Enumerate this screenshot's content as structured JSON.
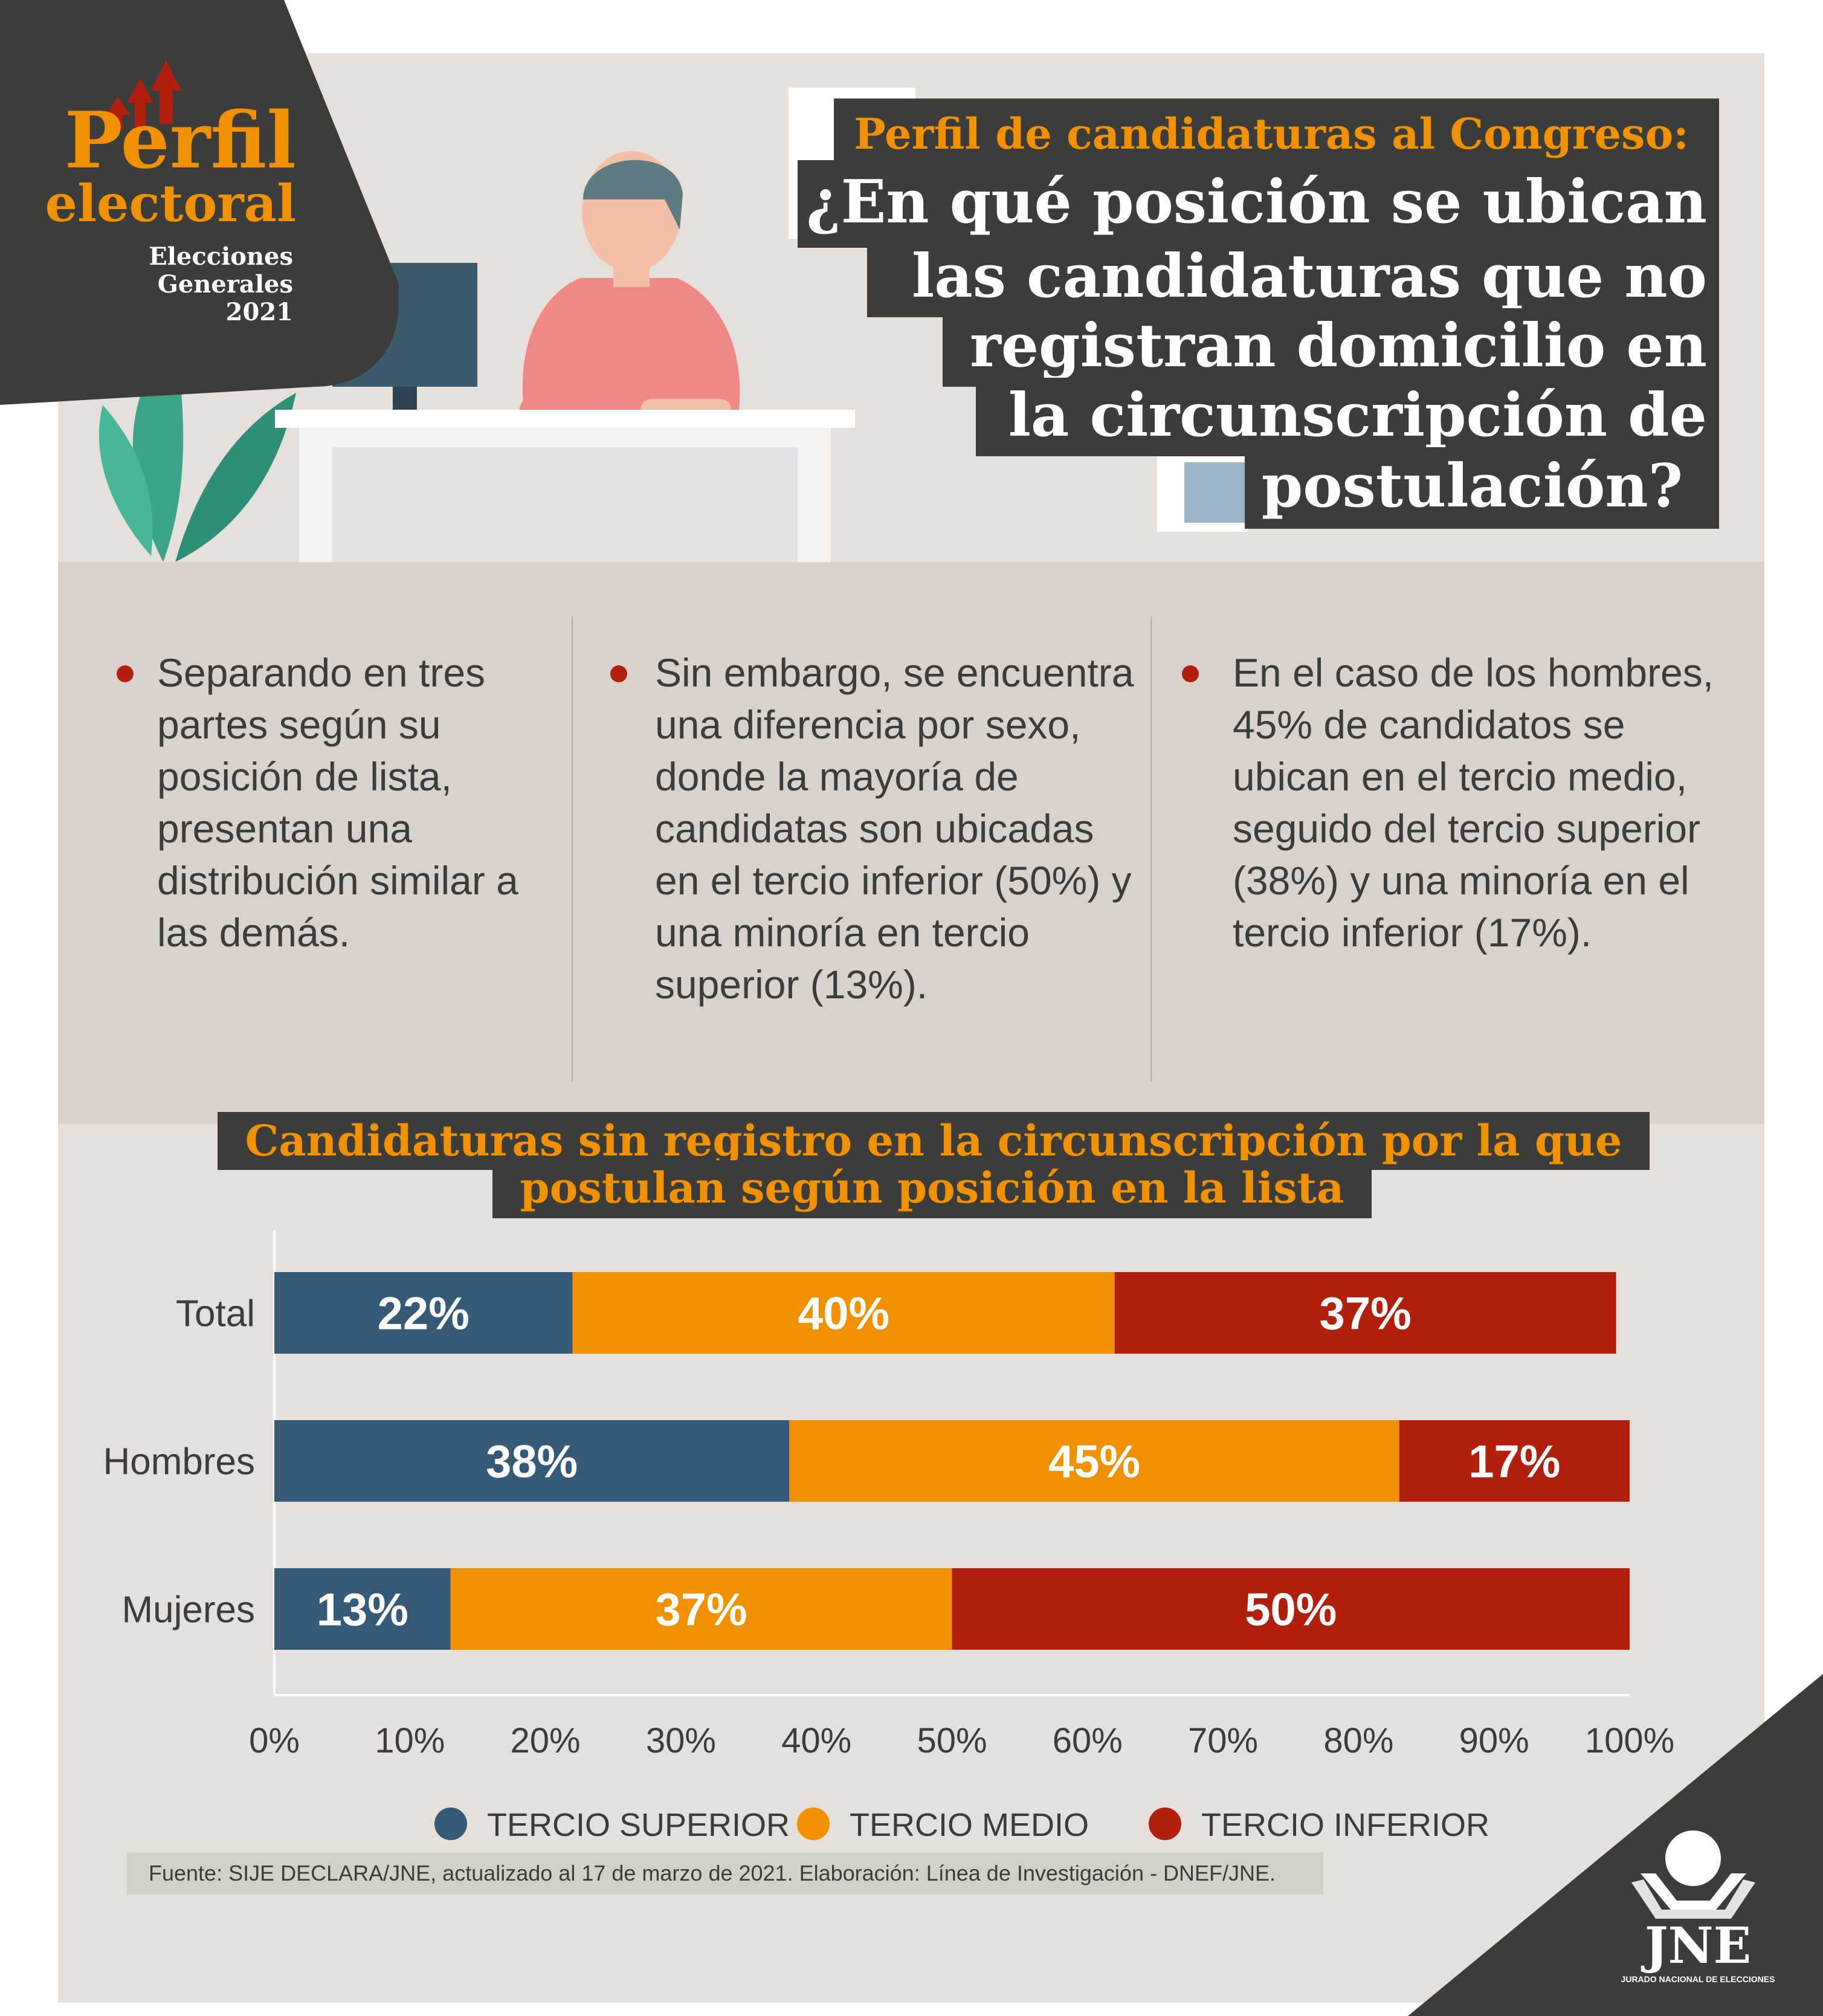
{
  "badge": {
    "title_line1": "Perfil",
    "title_line2": "electoral",
    "sub_line1": "Elecciones",
    "sub_line2": "Generales",
    "sub_line3": "2021"
  },
  "header": {
    "kicker": "Perfil de candidaturas al Congreso:",
    "question_lines": [
      "¿En qué posición se ubican",
      "las candidaturas que no",
      "registran domicilio en",
      "la circunscripción de",
      "postulación?"
    ]
  },
  "columns": [
    "Separando en tres partes según su posición de lista, presentan una distribución similar a las demás.",
    "Sin embargo, se encuentra una diferencia por sexo, donde la mayoría de candidatas son ubicadas en el tercio inferior (50%) y una minoría en tercio superior (13%).",
    "En el caso de los hombres, 45% de candidatos se ubican en el tercio medio, seguido del tercio superior (38%) y una minoría en el tercio inferior (17%)."
  ],
  "chart_title": {
    "line1": "Candidaturas sin registro en la circunscripción por la que",
    "line2": "postulan según posición en la lista"
  },
  "chart_data": {
    "type": "bar",
    "orientation": "horizontal",
    "stacked": true,
    "categories": [
      "Total",
      "Hombres",
      "Mujeres"
    ],
    "series": [
      {
        "name": "TERCIO SUPERIOR",
        "color": "#355a78",
        "values": [
          22,
          38,
          13
        ],
        "labels": [
          "22%",
          "38%",
          "13%"
        ]
      },
      {
        "name": "TERCIO MEDIO",
        "color": "#f29100",
        "values": [
          40,
          45,
          37
        ],
        "labels": [
          "40%",
          "45%",
          "37%"
        ]
      },
      {
        "name": "TERCIO INFERIOR",
        "color": "#b21f0c",
        "values": [
          37,
          17,
          50
        ],
        "labels": [
          "37%",
          "17%",
          "50%"
        ]
      }
    ],
    "xlim": [
      0,
      100
    ],
    "xticks": [
      "0%",
      "10%",
      "20%",
      "30%",
      "40%",
      "50%",
      "60%",
      "70%",
      "80%",
      "90%",
      "100%"
    ],
    "legend_position": "bottom",
    "grid": false
  },
  "source": "Fuente: SIJE DECLARA/JNE, actualizado al 17 de marzo de 2021. Elaboración: Línea de Investigación - DNEF/JNE.",
  "logo": {
    "text": "JNE",
    "subtext": "JURADO NACIONAL DE ELECCIONES"
  }
}
